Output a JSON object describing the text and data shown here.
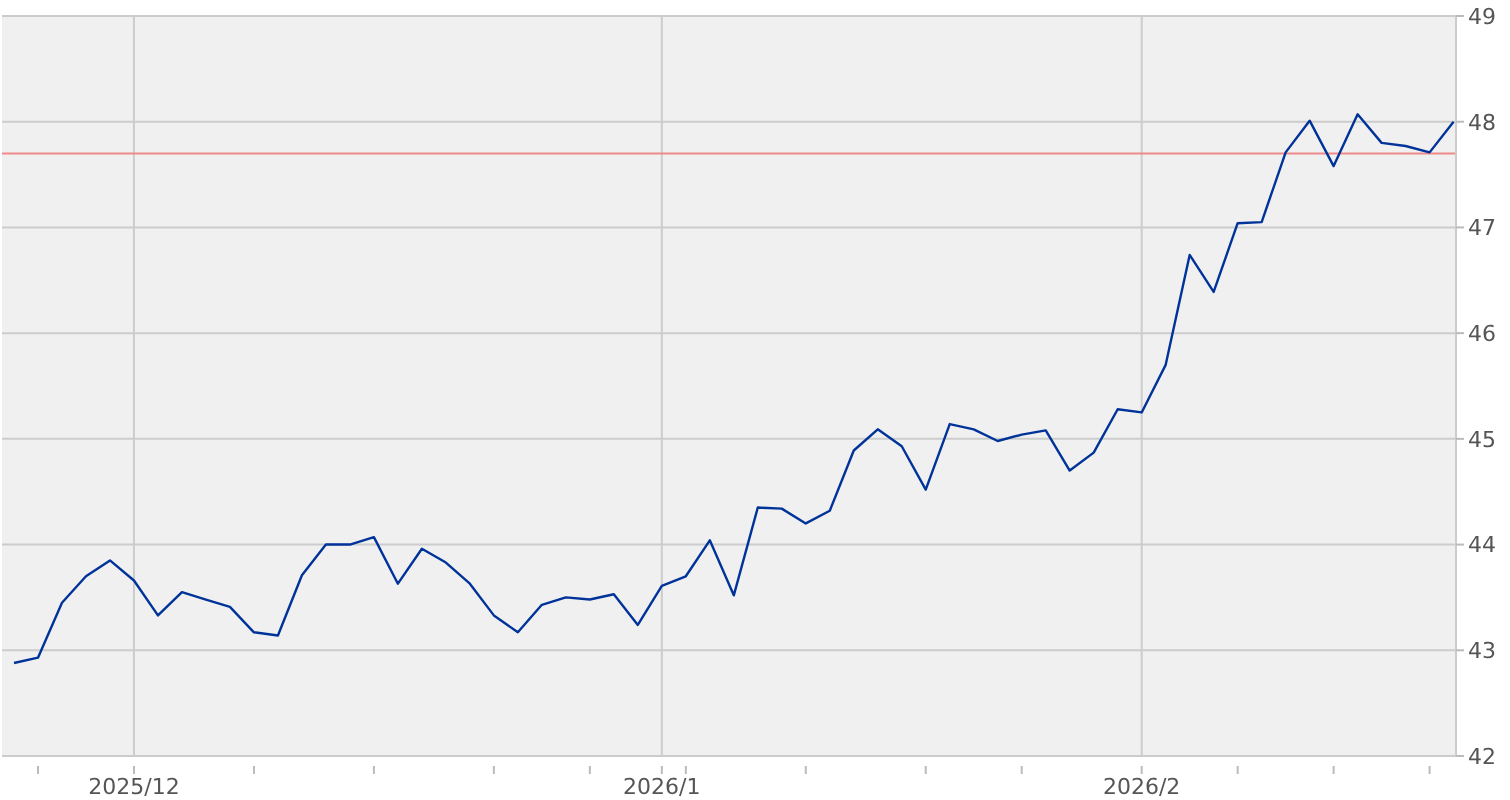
{
  "chart_data": {
    "type": "line",
    "categories": [
      null,
      null,
      null,
      null,
      null,
      "2025/12",
      null,
      null,
      null,
      null,
      null,
      null,
      null,
      null,
      null,
      null,
      null,
      null,
      null,
      null,
      null,
      null,
      null,
      null,
      null,
      null,
      null,
      "2026/1",
      null,
      null,
      null,
      null,
      null,
      null,
      null,
      null,
      null,
      null,
      null,
      null,
      null,
      null,
      null,
      null,
      null,
      null,
      null,
      "2026/2",
      null,
      null,
      null,
      null,
      null,
      null,
      null,
      null,
      null,
      null,
      null,
      null,
      null
    ],
    "series": [
      {
        "color": "#003399",
        "values": [
          42.88,
          42.93,
          43.45,
          43.7,
          43.85,
          43.66,
          43.33,
          43.55,
          43.48,
          43.41,
          43.17,
          43.14,
          43.71,
          44.0,
          44.0,
          44.07,
          43.63,
          43.96,
          43.83,
          43.63,
          43.33,
          43.17,
          43.43,
          43.5,
          43.48,
          43.53,
          43.24,
          43.61,
          43.7,
          44.04,
          43.52,
          44.35,
          44.34,
          44.2,
          44.32,
          44.89,
          45.09,
          44.93,
          44.52,
          45.14,
          45.09,
          44.98,
          45.04,
          45.08,
          44.7,
          44.87,
          45.28,
          45.25,
          45.7,
          46.74,
          46.39,
          47.04,
          47.05,
          47.71,
          48.01,
          47.58,
          48.07,
          47.8,
          47.77,
          47.71,
          48.0
        ]
      }
    ],
    "ylim": [
      42,
      49
    ],
    "yticks": [
      42,
      43,
      44,
      45,
      46,
      47,
      48,
      49
    ],
    "ref_lines": [
      {
        "axis": "y",
        "value": 47.7,
        "color": "#f08a8a"
      }
    ],
    "grid": true,
    "marker": "none",
    "line_style": "solid"
  }
}
